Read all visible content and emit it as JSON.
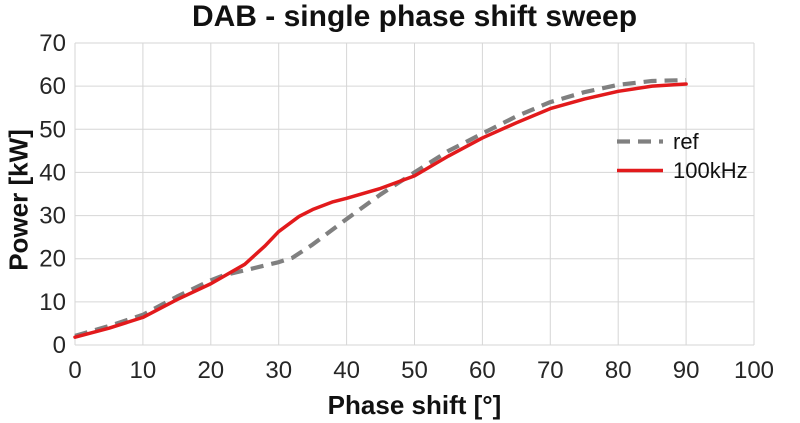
{
  "chart_data": {
    "type": "line",
    "title": "DAB - single phase shift sweep",
    "xlabel": "Phase shift [°]",
    "ylabel": "Power [kW]",
    "xlim": [
      0,
      100
    ],
    "ylim": [
      0,
      70
    ],
    "xticks": [
      0,
      10,
      20,
      30,
      40,
      50,
      60,
      70,
      80,
      90,
      100
    ],
    "yticks": [
      0,
      10,
      20,
      30,
      40,
      50,
      60,
      70
    ],
    "grid": true,
    "grid_color": "#d6d6d6",
    "text_color": "#262626",
    "legend_position": "inside-right",
    "series": [
      {
        "name": "ref",
        "color": "#808080",
        "style": "dashed",
        "dash": "13 8",
        "line_width": 4.2,
        "x": [
          0,
          5,
          10,
          15,
          20,
          22,
          25,
          30,
          32,
          35,
          40,
          45,
          50,
          55,
          60,
          65,
          70,
          75,
          80,
          85,
          90
        ],
        "y": [
          2.1,
          4.4,
          7.0,
          11.2,
          15.0,
          16.2,
          17.3,
          19.2,
          20.2,
          23.3,
          29.2,
          34.9,
          40.0,
          45.0,
          49.0,
          53.0,
          56.3,
          58.6,
          60.3,
          61.2,
          61.4
        ]
      },
      {
        "name": "100kHz",
        "color": "#e21a1c",
        "style": "solid",
        "dash": "",
        "line_width": 3.5,
        "x": [
          0,
          5,
          10,
          15,
          20,
          25,
          28,
          30,
          33,
          35,
          38,
          40,
          45,
          50,
          55,
          60,
          65,
          70,
          75,
          80,
          85,
          90
        ],
        "y": [
          1.8,
          3.9,
          6.4,
          10.5,
          14.2,
          18.7,
          23.0,
          26.3,
          29.8,
          31.4,
          33.2,
          34.0,
          36.3,
          39.2,
          43.8,
          48.0,
          51.5,
          54.8,
          57.0,
          58.8,
          60.0,
          60.5
        ]
      }
    ]
  }
}
